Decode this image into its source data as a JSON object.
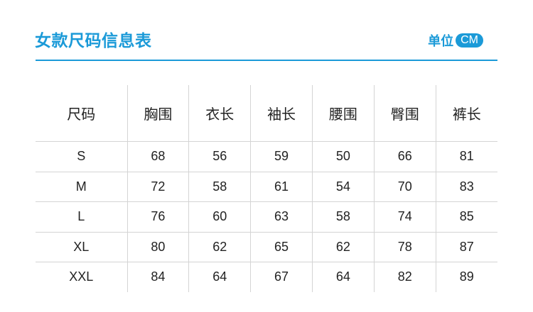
{
  "header": {
    "title": "女款尺码信息表",
    "unit_label": "单位",
    "unit_value": "CM",
    "accent_color": "#1b9ad8"
  },
  "table": {
    "columns": [
      "尺码",
      "胸围",
      "衣长",
      "袖长",
      "腰围",
      "臀围",
      "裤长"
    ],
    "rows": [
      [
        "S",
        "68",
        "56",
        "59",
        "50",
        "66",
        "81"
      ],
      [
        "M",
        "72",
        "58",
        "61",
        "54",
        "70",
        "83"
      ],
      [
        "L",
        "76",
        "60",
        "63",
        "58",
        "74",
        "85"
      ],
      [
        "XL",
        "80",
        "62",
        "65",
        "62",
        "78",
        "87"
      ],
      [
        "XXL",
        "84",
        "64",
        "67",
        "64",
        "82",
        "89"
      ]
    ]
  }
}
